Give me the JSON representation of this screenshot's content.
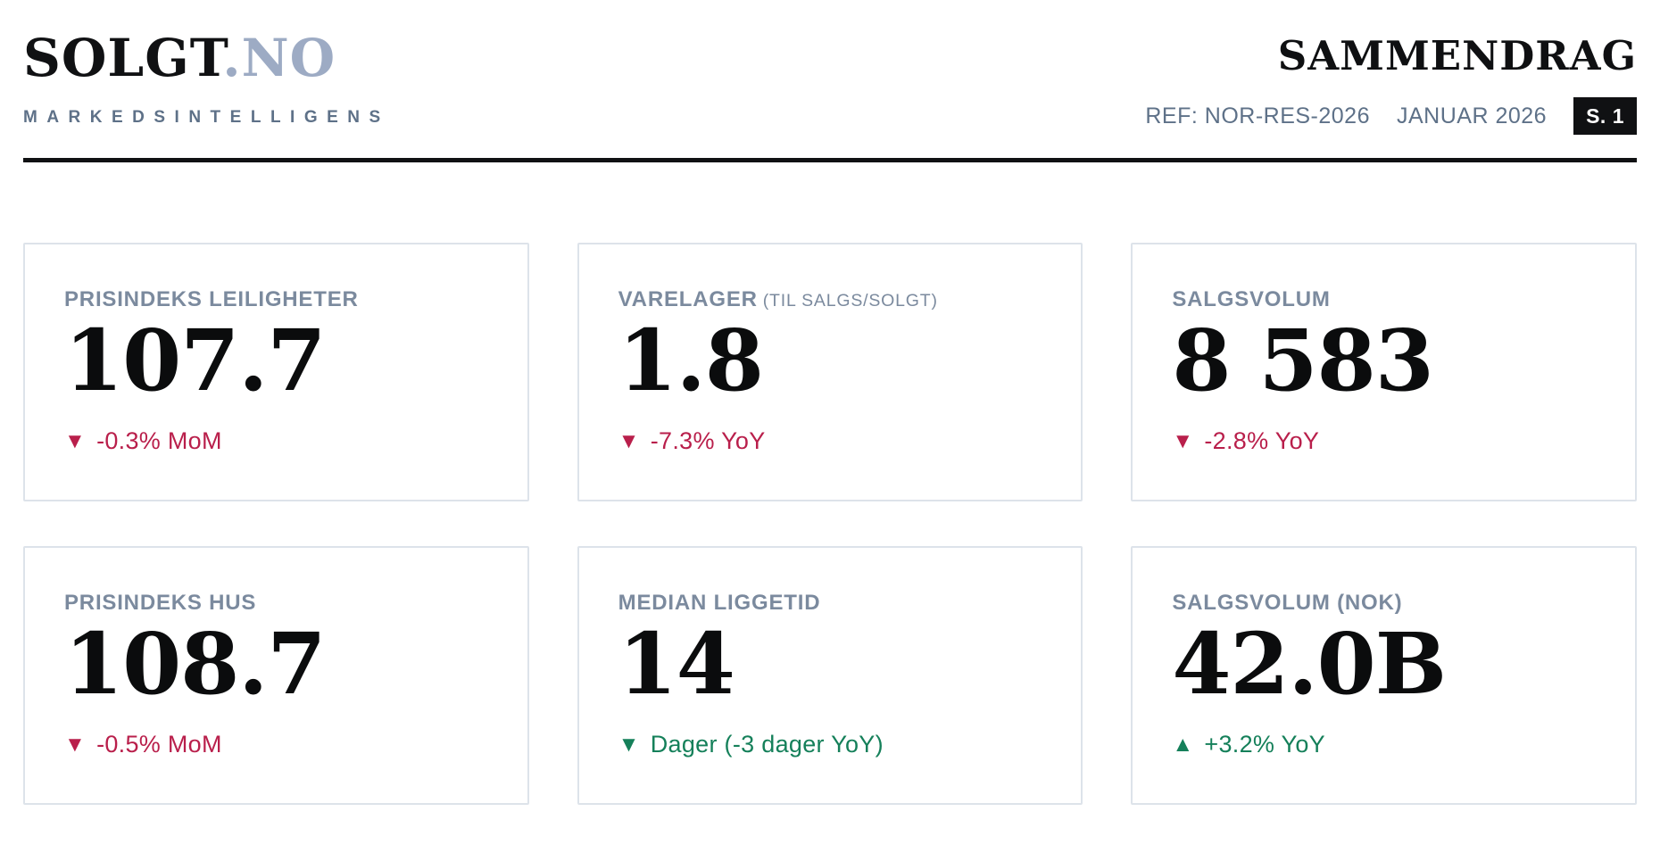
{
  "header": {
    "logo_primary": "SOLGT",
    "logo_secondary": ".NO",
    "tagline": "MARKEDSINTELLIGENS",
    "title": "SAMMENDRAG",
    "ref": "REF: NOR-RES-2026",
    "period": "JANUAR 2026",
    "page_badge": "S. 1"
  },
  "colors": {
    "negative": "#b91f4b",
    "positive": "#15805a",
    "label_muted": "#7b8a9e",
    "logo_muted": "#9dabc4",
    "ink": "#101113",
    "card_border": "#dde3ea"
  },
  "cards": [
    {
      "label": "PRISINDEKS LEILIGHETER",
      "sublabel": "",
      "value": "107.7",
      "delta_icon": "▼",
      "delta_text": "-0.3% MoM",
      "trend": "negative"
    },
    {
      "label": "VARELAGER",
      "sublabel": "(TIL SALGS/SOLGT)",
      "value": "1.8",
      "delta_icon": "▼",
      "delta_text": "-7.3% YoY",
      "trend": "negative"
    },
    {
      "label": "SALGSVOLUM",
      "sublabel": "",
      "value": "8 583",
      "delta_icon": "▼",
      "delta_text": "-2.8% YoY",
      "trend": "negative"
    },
    {
      "label": "PRISINDEKS HUS",
      "sublabel": "",
      "value": "108.7",
      "delta_icon": "▼",
      "delta_text": "-0.5% MoM",
      "trend": "negative"
    },
    {
      "label": "MEDIAN LIGGETID",
      "sublabel": "",
      "value": "14",
      "delta_icon": "▼",
      "delta_text": "Dager (-3 dager YoY)",
      "trend": "positive"
    },
    {
      "label": "SALGSVOLUM (NOK)",
      "sublabel": "",
      "value": "42.0B",
      "delta_icon": "▲",
      "delta_text": "+3.2% YoY",
      "trend": "positive"
    }
  ]
}
